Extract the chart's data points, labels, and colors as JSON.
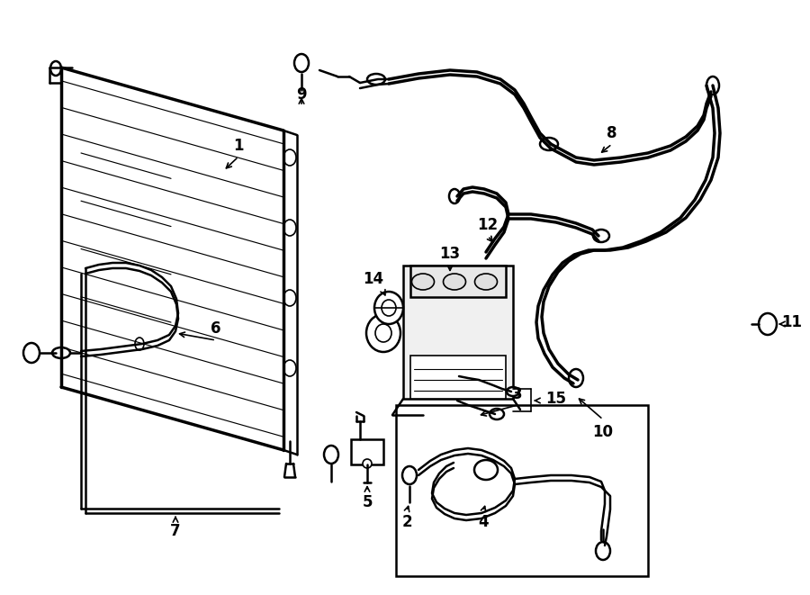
{
  "bg_color": "#ffffff",
  "line_color": "#000000",
  "lw_thick": 2.5,
  "lw_med": 1.8,
  "lw_thin": 1.2,
  "fig_width": 9.0,
  "fig_height": 6.61,
  "dpi": 100,
  "label_fontsize": 12
}
